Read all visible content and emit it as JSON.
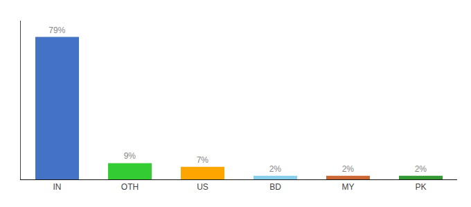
{
  "chart_data": {
    "type": "bar",
    "categories": [
      "IN",
      "OTH",
      "US",
      "BD",
      "MY",
      "PK"
    ],
    "values": [
      79,
      9,
      7,
      2,
      2,
      2
    ],
    "value_labels": [
      "79%",
      "9%",
      "7%",
      "2%",
      "2%",
      "2%"
    ],
    "colors": [
      "#4472C4",
      "#33CC33",
      "#FFA500",
      "#87CEEB",
      "#CC6633",
      "#339933"
    ],
    "ylim": [
      0,
      88
    ],
    "data_labels": true,
    "grid": false,
    "tick_labels": "x"
  }
}
